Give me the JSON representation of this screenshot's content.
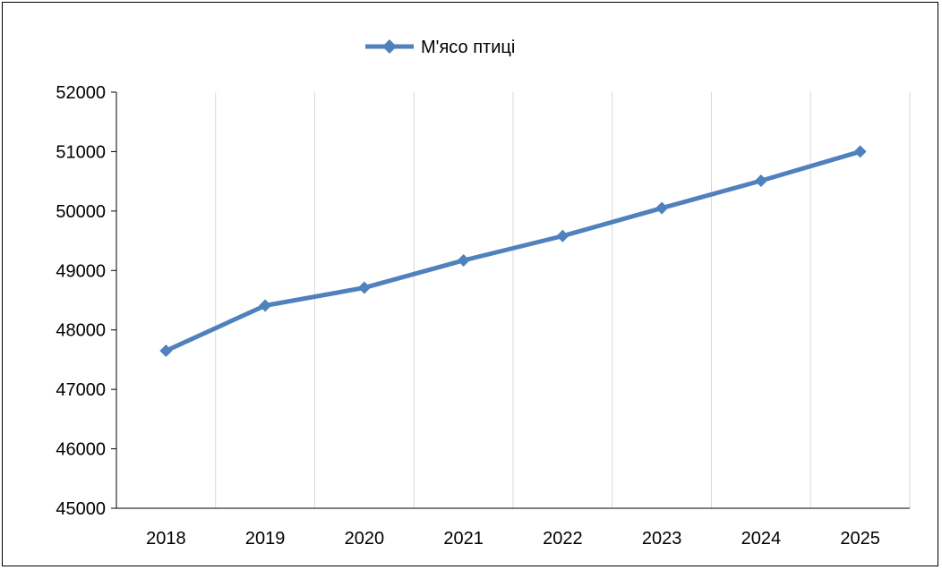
{
  "chart_data": {
    "type": "line",
    "x": [
      "2018",
      "2019",
      "2020",
      "2021",
      "2022",
      "2023",
      "2024",
      "2025"
    ],
    "series": [
      {
        "name": "М'ясо птиці",
        "values": [
          47650,
          48410,
          48710,
          49170,
          49580,
          50050,
          50510,
          51000
        ]
      }
    ],
    "ylim": [
      45000,
      52000
    ],
    "yticks": [
      "45000",
      "46000",
      "47000",
      "48000",
      "49000",
      "50000",
      "51000",
      "52000"
    ],
    "grid": "vertical",
    "legend_position": "top",
    "colors": {
      "series": "#4F81BD",
      "grid": "#D9D9D9",
      "axis": "#000000"
    }
  }
}
